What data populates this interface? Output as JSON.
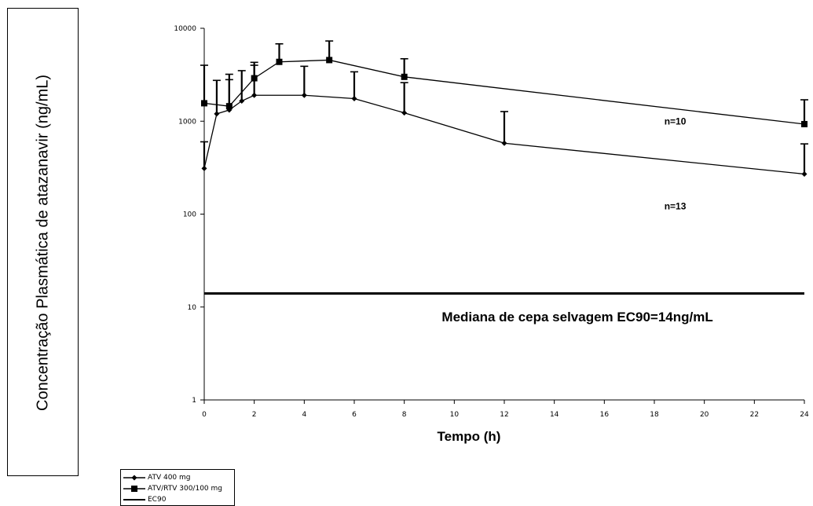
{
  "chart_data": {
    "type": "line",
    "title": "",
    "xlabel": "Tempo (h)",
    "ylabel": "Concentração Plasmática de atazanavir (ng/mL)",
    "x_ticks": [
      "0",
      "2",
      "4",
      "6",
      "8",
      "10",
      "12",
      "14",
      "16",
      "18",
      "20",
      "22",
      "24"
    ],
    "y_ticks": [
      "1",
      "10",
      "100",
      "1000",
      "10000"
    ],
    "xlim": [
      0,
      24
    ],
    "ylim": [
      1,
      10000
    ],
    "y_scale": "log",
    "grid": false,
    "legend_position": "bottom-left",
    "series": [
      {
        "name": "ATV 400 mg",
        "marker": "diamond",
        "color": "#000000",
        "x": [
          0,
          0.5,
          1,
          1.5,
          2,
          4,
          6,
          8,
          12,
          24
        ],
        "y": [
          310,
          1200,
          1320,
          1650,
          1900,
          1900,
          1750,
          1230,
          580,
          270
        ],
        "error_upper": [
          600,
          2750,
          2800,
          3500,
          4000,
          3900,
          3400,
          2600,
          1270,
          570
        ]
      },
      {
        "name": "ATV/RTV 300/100 mg",
        "marker": "square",
        "color": "#000000",
        "x": [
          0,
          1,
          2,
          3,
          5,
          8,
          24
        ],
        "y": [
          1560,
          1450,
          2900,
          4350,
          4550,
          3000,
          930
        ],
        "error_upper": [
          4000,
          3200,
          4300,
          6800,
          7300,
          4700,
          1700
        ]
      },
      {
        "name": "EC90",
        "marker": "none",
        "color": "#000000",
        "x": [
          0,
          24
        ],
        "y": [
          14,
          14
        ]
      }
    ],
    "annotations": [
      {
        "text": "n=10",
        "x": 18.4,
        "y": 920
      },
      {
        "text": "n=13",
        "x": 18.4,
        "y": 112
      },
      {
        "text": "Mediana de cepa selvagem EC90=14ng/mL",
        "x": 9.5,
        "y": 7
      }
    ]
  }
}
